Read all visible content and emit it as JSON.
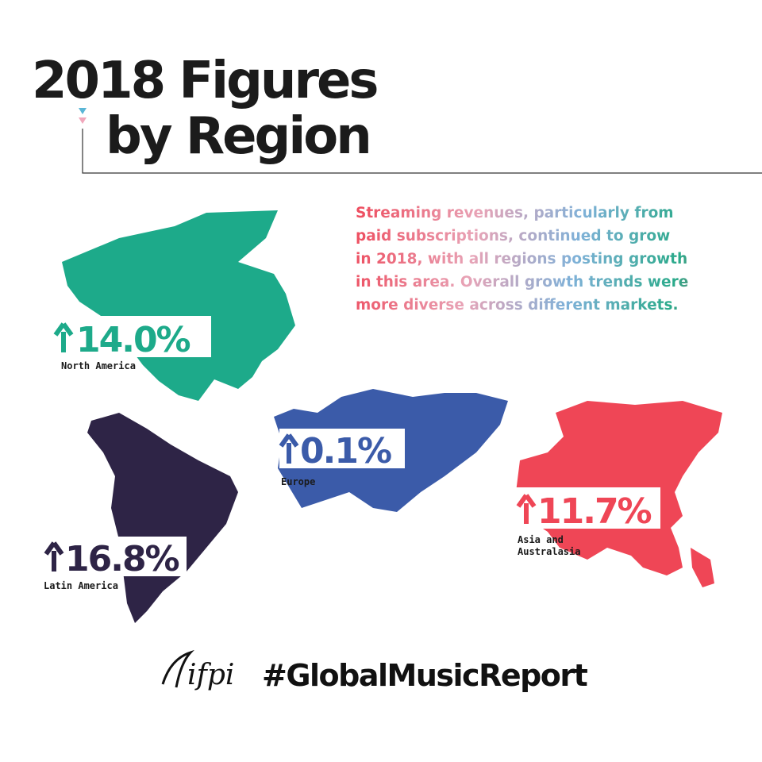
{
  "header": {
    "title_line1": "2018 Figures",
    "title_line2": "by Region"
  },
  "description": {
    "lines": [
      "Streaming revenues, particularly from",
      "paid subscriptions, continued to grow",
      "in 2018, with all regions posting growth",
      "in this area. Overall growth trends were",
      "more diverse across different markets."
    ]
  },
  "regions": [
    {
      "growth": "14.0%",
      "name": "North America",
      "color": "#1daa8a"
    },
    {
      "growth": "16.8%",
      "name": "Latin America",
      "color": "#2e2446"
    },
    {
      "growth": "0.1%",
      "name": "Europe",
      "color": "#3b5ba9"
    },
    {
      "growth": "11.7%",
      "name_lines": [
        "Asia and",
        "Australasia"
      ],
      "color": "#ef4656"
    }
  ],
  "footer": {
    "logo": "ifpi",
    "hashtag": "#GlobalMusicReport"
  }
}
